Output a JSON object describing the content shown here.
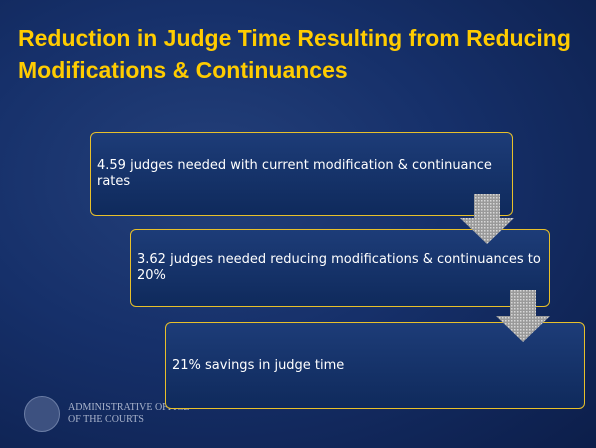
{
  "title": "Reduction in Judge Time Resulting from Reducing Modifications & Continuances",
  "boxes": [
    {
      "text": "4.59 judges needed with current modification & continuance rates"
    },
    {
      "text": "3.62 judges needed reducing modifications & continuances to 20%"
    },
    {
      "text": "21% savings in judge time"
    }
  ],
  "footer": {
    "line1": "ADMINISTRATIVE OFFICE",
    "line2": "OF THE COURTS"
  }
}
